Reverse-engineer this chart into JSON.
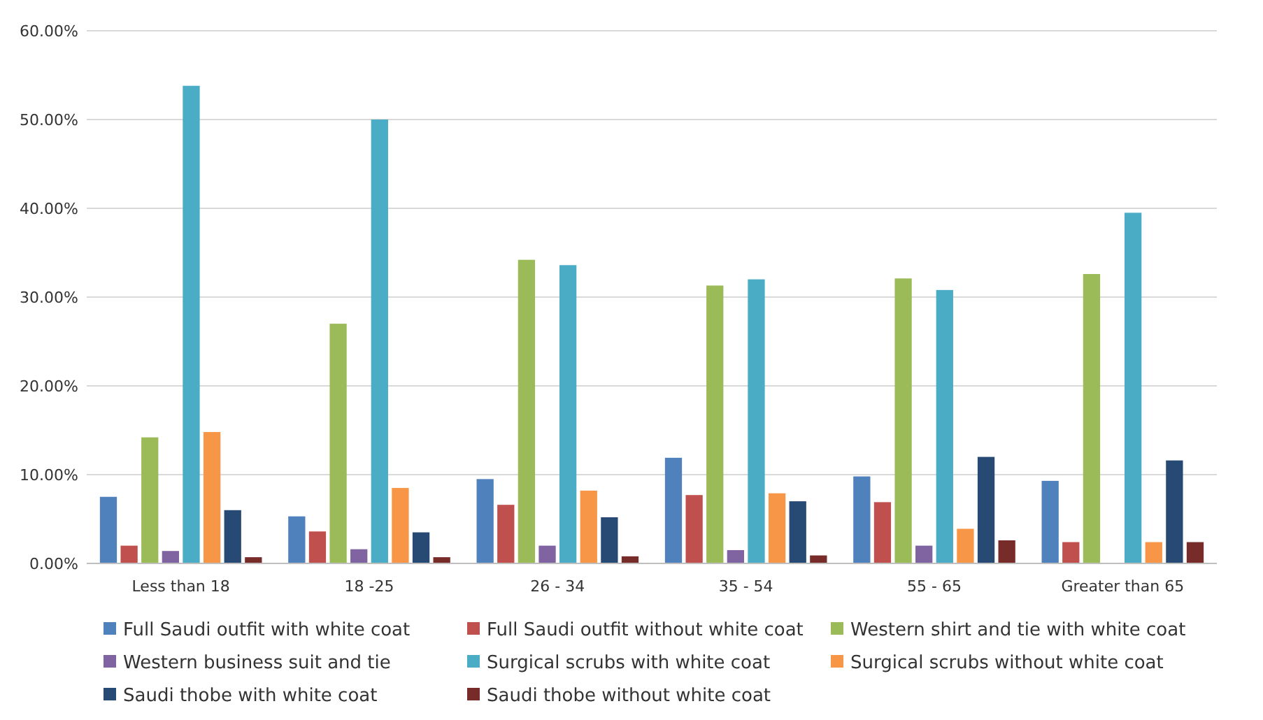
{
  "chart_data": {
    "type": "bar",
    "categories": [
      "Less than 18",
      "18 -25",
      "26 - 34",
      "35 - 54",
      "55 - 65",
      "Greater than 65"
    ],
    "series": [
      {
        "name": "Full Saudi outfit with white coat",
        "color": "#4f81bd",
        "values": [
          7.5,
          5.3,
          9.5,
          11.9,
          9.8,
          9.3
        ]
      },
      {
        "name": "Full Saudi outfit without white coat",
        "color": "#c0504d",
        "values": [
          2.0,
          3.6,
          6.6,
          7.7,
          6.9,
          2.4
        ]
      },
      {
        "name": "Western shirt and tie with white coat",
        "color": "#9bbb59",
        "values": [
          14.2,
          27.0,
          34.2,
          31.3,
          32.1,
          32.6
        ]
      },
      {
        "name": "Western business suit and tie",
        "color": "#8064a2",
        "values": [
          1.4,
          1.6,
          2.0,
          1.5,
          2.0,
          0
        ]
      },
      {
        "name": "Surgical scrubs with white coat",
        "color": "#4bacc6",
        "values": [
          53.8,
          50.0,
          33.6,
          32.0,
          30.8,
          39.5
        ]
      },
      {
        "name": "Surgical scrubs without white coat",
        "color": "#f79646",
        "values": [
          14.8,
          8.5,
          8.2,
          7.9,
          3.9,
          2.4
        ]
      },
      {
        "name": "Saudi thobe with white coat",
        "color": "#264a73",
        "values": [
          6.0,
          3.5,
          5.2,
          7.0,
          12.0,
          11.6
        ]
      },
      {
        "name": "Saudi thobe without white coat",
        "color": "#772c2a",
        "values": [
          0.7,
          0.7,
          0.8,
          0.9,
          2.6,
          2.4
        ]
      }
    ],
    "ylim": [
      0,
      60
    ],
    "yticks": [
      {
        "value": 0,
        "label": "0.00%"
      },
      {
        "value": 10,
        "label": "10.00%"
      },
      {
        "value": 20,
        "label": "20.00%"
      },
      {
        "value": 30,
        "label": "30.00%"
      },
      {
        "value": 40,
        "label": "40.00%"
      },
      {
        "value": 50,
        "label": "50.00%"
      },
      {
        "value": 60,
        "label": "60.00%"
      }
    ],
    "grid": "y",
    "legend": "bottom"
  }
}
